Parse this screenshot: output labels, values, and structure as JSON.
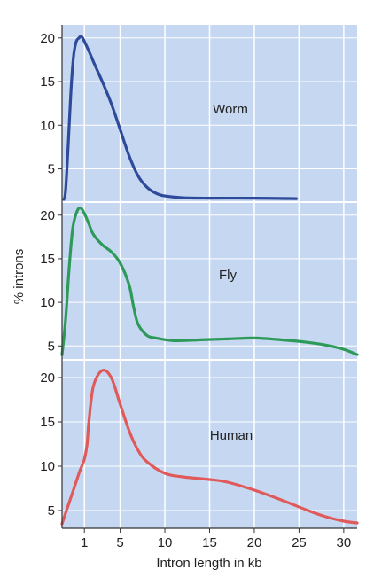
{
  "chart_data": {
    "type": "line",
    "ylabel": "% introns",
    "xlabel": "Intron length in kb",
    "x_ticks": [
      1,
      5,
      10,
      15,
      20,
      25,
      30
    ],
    "x_range": [
      -1.5,
      31.5
    ],
    "grid": true,
    "panels": [
      {
        "label": "Worm",
        "color": "#2e4a9a",
        "ylim": [
          1.2,
          21.5
        ],
        "y_ticks": [
          5,
          10,
          15,
          20
        ],
        "x": [
          -1.3,
          -1.1,
          -0.8,
          -0.5,
          -0.2,
          0.1,
          0.4,
          0.6,
          0.8,
          1.0,
          1.5,
          2.0,
          3.0,
          4.0,
          5.0,
          6.0,
          7.0,
          8.0,
          9.0,
          10.0,
          12.0,
          15.0,
          20.0,
          24.7
        ],
        "y": [
          1.5,
          2.5,
          8.0,
          14.0,
          18.0,
          19.6,
          20.0,
          20.2,
          20.0,
          19.6,
          18.5,
          17.3,
          15.0,
          12.5,
          9.5,
          6.5,
          4.2,
          2.9,
          2.2,
          1.9,
          1.7,
          1.65,
          1.65,
          1.6
        ]
      },
      {
        "label": "Fly",
        "color": "#2e9a5a",
        "ylim": [
          3.4,
          21.5
        ],
        "y_ticks": [
          5,
          10,
          15,
          20
        ],
        "x": [
          -1.5,
          -1.1,
          -0.7,
          -0.3,
          0.2,
          0.6,
          1.0,
          1.5,
          2.0,
          3.0,
          4.0,
          5.0,
          6.0,
          6.5,
          7.0,
          8.0,
          9.0,
          11.0,
          14.0,
          17.0,
          20.0,
          23.0,
          26.0,
          28.0,
          30.0,
          31.5
        ],
        "y": [
          4.0,
          8.0,
          14.0,
          18.5,
          20.5,
          20.8,
          20.2,
          19.0,
          17.8,
          16.6,
          15.8,
          14.5,
          12.0,
          9.5,
          7.5,
          6.2,
          5.9,
          5.6,
          5.7,
          5.8,
          5.9,
          5.7,
          5.4,
          5.1,
          4.6,
          4.0
        ]
      },
      {
        "label": "Human",
        "color": "#e05a5a",
        "ylim": [
          3.0,
          22.0
        ],
        "y_ticks": [
          5,
          10,
          15,
          20
        ],
        "x": [
          -1.5,
          -1.0,
          -0.5,
          0.0,
          0.5,
          1.0,
          1.3,
          1.5,
          2.0,
          3.0,
          4.0,
          5.0,
          6.0,
          7.0,
          8.0,
          10.0,
          12.0,
          15.0,
          17.0,
          20.0,
          23.0,
          26.0,
          28.0,
          30.0,
          31.5
        ],
        "y": [
          3.5,
          5.0,
          6.5,
          8.0,
          9.5,
          10.8,
          12.5,
          15.0,
          19.0,
          20.8,
          20.0,
          17.0,
          14.0,
          11.8,
          10.5,
          9.2,
          8.8,
          8.5,
          8.2,
          7.3,
          6.2,
          5.0,
          4.3,
          3.8,
          3.6
        ]
      }
    ]
  }
}
